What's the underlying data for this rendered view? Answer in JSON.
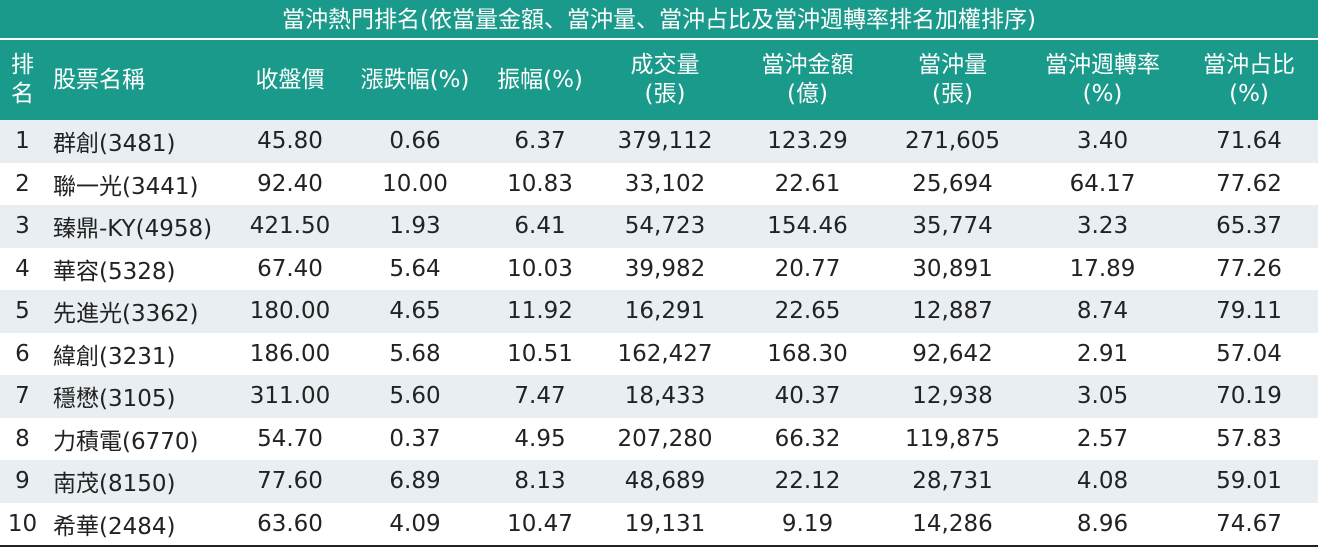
{
  "title": "當沖熱門排名(依當量金額、當沖量、當沖占比及當沖週轉率排名加權排序)",
  "table": {
    "headers": [
      "排\n名",
      "股票名稱",
      "收盤價",
      "漲跌幅(%)",
      "振幅(%)",
      "成交量\n(張)",
      "當沖金額\n(億)",
      "當沖量\n(張)",
      "當沖週轉率\n(%)",
      "當沖占比\n(%)"
    ],
    "rows": [
      [
        "1",
        "群創(3481)",
        "45.80",
        "0.66",
        "6.37",
        "379,112",
        "123.29",
        "271,605",
        "3.40",
        "71.64"
      ],
      [
        "2",
        "聯一光(3441)",
        "92.40",
        "10.00",
        "10.83",
        "33,102",
        "22.61",
        "25,694",
        "64.17",
        "77.62"
      ],
      [
        "3",
        "臻鼎-KY(4958)",
        "421.50",
        "1.93",
        "6.41",
        "54,723",
        "154.46",
        "35,774",
        "3.23",
        "65.37"
      ],
      [
        "4",
        "華容(5328)",
        "67.40",
        "5.64",
        "10.03",
        "39,982",
        "20.77",
        "30,891",
        "17.89",
        "77.26"
      ],
      [
        "5",
        "先進光(3362)",
        "180.00",
        "4.65",
        "11.92",
        "16,291",
        "22.65",
        "12,887",
        "8.74",
        "79.11"
      ],
      [
        "6",
        "緯創(3231)",
        "186.00",
        "5.68",
        "10.51",
        "162,427",
        "168.30",
        "92,642",
        "2.91",
        "57.04"
      ],
      [
        "7",
        "穩懋(3105)",
        "311.00",
        "5.60",
        "7.47",
        "18,433",
        "40.37",
        "12,938",
        "3.05",
        "70.19"
      ],
      [
        "8",
        "力積電(6770)",
        "54.70",
        "0.37",
        "4.95",
        "207,280",
        "66.32",
        "119,875",
        "2.57",
        "57.83"
      ],
      [
        "9",
        "南茂(8150)",
        "77.60",
        "6.89",
        "8.13",
        "48,689",
        "22.12",
        "28,731",
        "4.08",
        "59.01"
      ],
      [
        "10",
        "希華(2484)",
        "63.60",
        "4.09",
        "10.47",
        "19,131",
        "9.19",
        "14,286",
        "8.96",
        "74.67"
      ]
    ]
  }
}
